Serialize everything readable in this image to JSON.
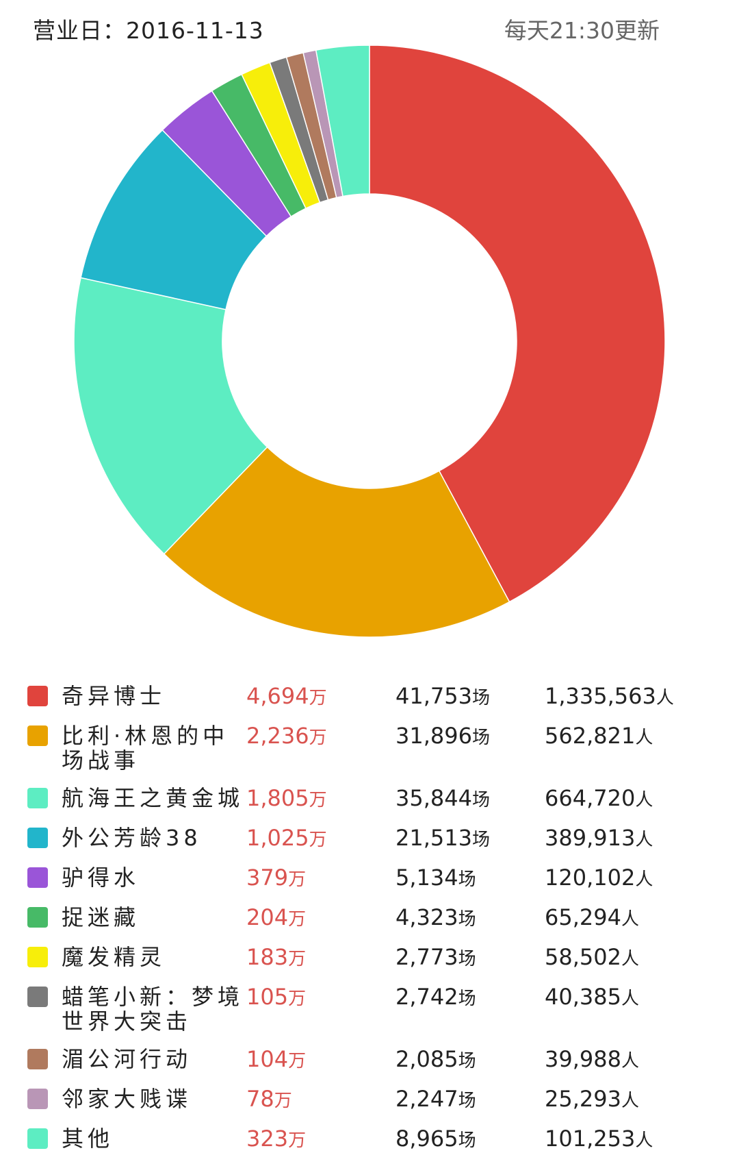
{
  "header": {
    "date_label": "营业日：2016-11-13",
    "update_note": "每天21:30更新"
  },
  "units": {
    "gross": "万",
    "shows": "场",
    "people": "人"
  },
  "chart_data": {
    "type": "pie",
    "donut": true,
    "slices": [
      {
        "name": "奇异博士",
        "value": 4694,
        "color": "#e0443d",
        "gross": "4,694",
        "shows": "41,753",
        "people": "1,335,563"
      },
      {
        "name": "比利·林恩的中场战事",
        "value": 2236,
        "color": "#e8a200",
        "gross": "2,236",
        "shows": "31,896",
        "people": "562,821"
      },
      {
        "name": "航海王之黄金城",
        "value": 1805,
        "color": "#5dedc2",
        "gross": "1,805",
        "shows": "35,844",
        "people": "664,720"
      },
      {
        "name": "外公芳龄38",
        "value": 1025,
        "color": "#22b5cb",
        "gross": "1,025",
        "shows": "21,513",
        "people": "389,913"
      },
      {
        "name": "驴得水",
        "value": 379,
        "color": "#9a55d8",
        "gross": "379",
        "shows": "5,134",
        "people": "120,102"
      },
      {
        "name": "捉迷藏",
        "value": 204,
        "color": "#47ba67",
        "gross": "204",
        "shows": "4,323",
        "people": "65,294"
      },
      {
        "name": "魔发精灵",
        "value": 183,
        "color": "#f7ee0a",
        "gross": "183",
        "shows": "2,773",
        "people": "58,502"
      },
      {
        "name": "蜡笔小新：梦境世界大突击",
        "value": 105,
        "color": "#7a7a7a",
        "gross": "105",
        "shows": "2,742",
        "people": "40,385"
      },
      {
        "name": "湄公河行动",
        "value": 104,
        "color": "#b07a5e",
        "gross": "104",
        "shows": "2,085",
        "people": "39,988"
      },
      {
        "name": "邻家大贱谍",
        "value": 78,
        "color": "#b996b6",
        "gross": "78",
        "shows": "2,247",
        "people": "25,293"
      },
      {
        "name": "其他",
        "value": 323,
        "color": "#5dedc2",
        "gross": "323",
        "shows": "8,965",
        "people": "101,253"
      }
    ]
  }
}
